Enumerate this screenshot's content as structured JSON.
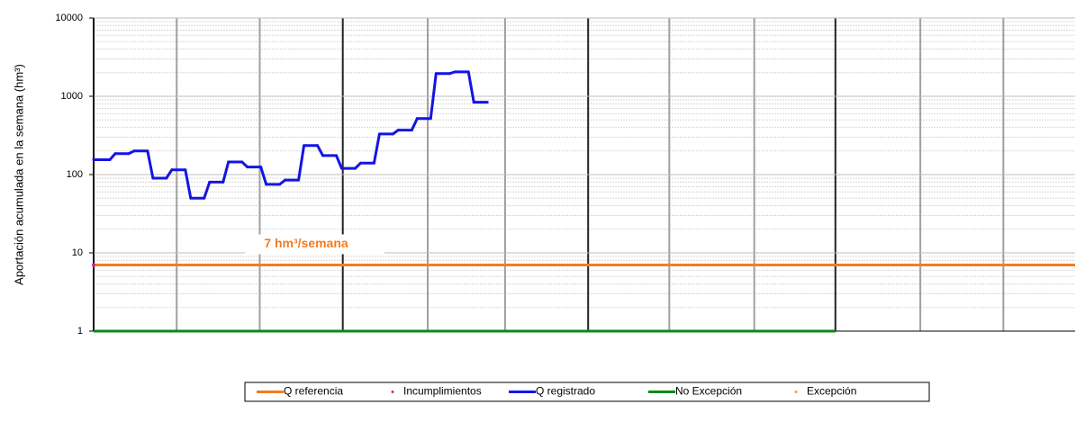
{
  "chart_data": {
    "type": "line",
    "y_label": "Aportación acumulada en la semana (hm³)",
    "annotation": "7 hm³/semana",
    "log_y": true,
    "grid": true,
    "ylim": [
      1,
      10000
    ],
    "yticks": [
      1,
      10,
      100,
      1000,
      10000
    ],
    "xlim": [
      0,
      52
    ],
    "xticks": [
      0,
      4.4,
      8.8,
      13.2,
      17.7,
      21.8,
      26.2,
      30.5,
      35,
      39.3,
      43.8,
      48.2
    ],
    "series": [
      {
        "name": "Q referencia",
        "color": "#f47c20",
        "style": "line",
        "x": [
          0,
          52
        ],
        "values": [
          7,
          7
        ]
      },
      {
        "name": "Incumplimientos",
        "color": "#e0208a",
        "style": "marker",
        "x": [
          0
        ],
        "values": [
          7
        ]
      },
      {
        "name": "Q registrado",
        "color": "#1414e6",
        "style": "step",
        "x": [
          0,
          1,
          2,
          3,
          4,
          5,
          6,
          7,
          8,
          9,
          10,
          11,
          12,
          13,
          14,
          15,
          16,
          17,
          18,
          19,
          20
        ],
        "values": [
          155,
          185,
          200,
          90,
          115,
          50,
          80,
          145,
          125,
          75,
          85,
          235,
          175,
          120,
          140,
          330,
          370,
          520,
          1950,
          2050,
          840
        ]
      },
      {
        "name": "No Excepción",
        "color": "#0a8a1a",
        "style": "line",
        "x": [
          0,
          39.3
        ],
        "values": [
          1,
          1
        ]
      },
      {
        "name": "Excepción",
        "color": "#f7a030",
        "style": "marker",
        "x": [],
        "values": []
      }
    ]
  }
}
